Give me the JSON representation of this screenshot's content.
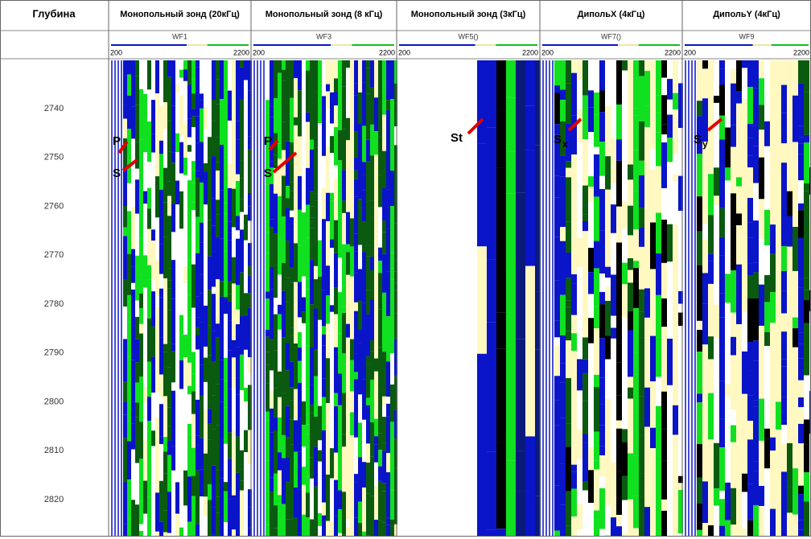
{
  "header": {
    "depth": "Глубина"
  },
  "tracks": [
    {
      "title": "Монопольный зонд (20кГц)",
      "curve": "WF1",
      "min": 200,
      "max": 2200,
      "annotations": [
        {
          "label": "P"
        },
        {
          "label": "S"
        }
      ]
    },
    {
      "title": "Монопольный зонд (8 кГц)",
      "curve": "WF3",
      "min": 200,
      "max": 2200,
      "annotations": [
        {
          "label": "P"
        },
        {
          "label": "S"
        }
      ]
    },
    {
      "title": "Монопольный зонд (3кГц)",
      "curve": "WF5()",
      "min": 200,
      "max": 2200,
      "annotations": [
        {
          "label": "St"
        }
      ]
    },
    {
      "title": "ДипольX (4кГц)",
      "curve": "WF7()",
      "min": 200,
      "max": 2200,
      "annotations": [
        {
          "label": "S",
          "sub": "x"
        }
      ]
    },
    {
      "title": "ДипольY (4кГц)",
      "curve": "WF9",
      "min": 200,
      "max": 2200,
      "annotations": [
        {
          "label": "S",
          "sub": "y"
        }
      ]
    }
  ],
  "depth": {
    "ticks": [
      2740,
      2750,
      2760,
      2770,
      2780,
      2790,
      2800,
      2810,
      2820
    ]
  }
}
